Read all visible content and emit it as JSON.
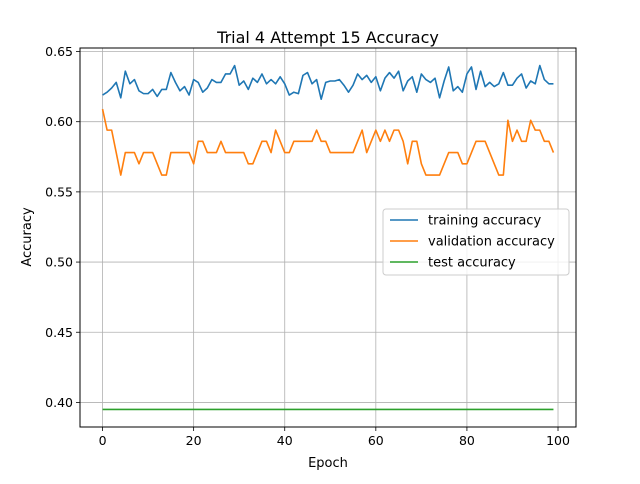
{
  "chart_data": {
    "type": "line",
    "title": "Trial 4 Attempt 15 Accuracy",
    "xlabel": "Epoch",
    "ylabel": "Accuracy",
    "xlim": [
      -4.95,
      103.95
    ],
    "ylim": [
      0.3825,
      0.6525
    ],
    "xticks": [
      0,
      20,
      40,
      60,
      80,
      100
    ],
    "yticks": [
      0.4,
      0.45,
      0.5,
      0.55,
      0.6,
      0.65
    ],
    "xtick_labels": [
      "0",
      "20",
      "40",
      "60",
      "80",
      "100"
    ],
    "ytick_labels": [
      "0.40",
      "0.45",
      "0.50",
      "0.55",
      "0.60",
      "0.65"
    ],
    "grid": true,
    "legend_position": "center-right",
    "series": [
      {
        "name": "training accuracy",
        "color": "#1f77b4",
        "values": [
          0.619,
          0.621,
          0.624,
          0.628,
          0.617,
          0.636,
          0.627,
          0.63,
          0.622,
          0.62,
          0.62,
          0.623,
          0.618,
          0.623,
          0.623,
          0.635,
          0.628,
          0.622,
          0.625,
          0.619,
          0.63,
          0.628,
          0.621,
          0.624,
          0.63,
          0.628,
          0.628,
          0.634,
          0.634,
          0.64,
          0.626,
          0.629,
          0.623,
          0.631,
          0.628,
          0.634,
          0.627,
          0.63,
          0.627,
          0.632,
          0.627,
          0.619,
          0.621,
          0.62,
          0.633,
          0.635,
          0.627,
          0.63,
          0.616,
          0.628,
          0.629,
          0.629,
          0.63,
          0.626,
          0.621,
          0.626,
          0.634,
          0.63,
          0.633,
          0.628,
          0.632,
          0.622,
          0.631,
          0.635,
          0.631,
          0.636,
          0.622,
          0.629,
          0.632,
          0.621,
          0.634,
          0.63,
          0.628,
          0.631,
          0.617,
          0.629,
          0.639,
          0.622,
          0.625,
          0.621,
          0.634,
          0.639,
          0.623,
          0.636,
          0.625,
          0.628,
          0.625,
          0.627,
          0.635,
          0.626,
          0.626,
          0.631,
          0.634,
          0.624,
          0.629,
          0.627,
          0.64,
          0.63,
          0.627,
          0.627
        ]
      },
      {
        "name": "validation accuracy",
        "color": "#ff7f0e",
        "values": [
          0.609,
          0.594,
          0.594,
          0.578,
          0.562,
          0.578,
          0.578,
          0.578,
          0.57,
          0.578,
          0.578,
          0.578,
          0.57,
          0.562,
          0.562,
          0.578,
          0.578,
          0.578,
          0.578,
          0.578,
          0.57,
          0.586,
          0.586,
          0.578,
          0.578,
          0.578,
          0.586,
          0.578,
          0.578,
          0.578,
          0.578,
          0.578,
          0.57,
          0.57,
          0.578,
          0.586,
          0.586,
          0.578,
          0.594,
          0.586,
          0.578,
          0.578,
          0.586,
          0.586,
          0.586,
          0.586,
          0.586,
          0.594,
          0.586,
          0.586,
          0.578,
          0.578,
          0.578,
          0.578,
          0.578,
          0.578,
          0.586,
          0.594,
          0.578,
          0.586,
          0.594,
          0.586,
          0.594,
          0.586,
          0.594,
          0.594,
          0.586,
          0.57,
          0.586,
          0.586,
          0.57,
          0.562,
          0.562,
          0.562,
          0.562,
          0.57,
          0.578,
          0.578,
          0.578,
          0.57,
          0.57,
          0.578,
          0.586,
          0.586,
          0.586,
          0.578,
          0.57,
          0.562,
          0.562,
          0.601,
          0.586,
          0.594,
          0.586,
          0.586,
          0.601,
          0.594,
          0.594,
          0.586,
          0.586,
          0.578
        ]
      },
      {
        "name": "test accuracy",
        "color": "#2ca02c",
        "values": [
          0.395,
          0.395,
          0.395,
          0.395,
          0.395,
          0.395,
          0.395,
          0.395,
          0.395,
          0.395,
          0.395,
          0.395,
          0.395,
          0.395,
          0.395,
          0.395,
          0.395,
          0.395,
          0.395,
          0.395,
          0.395,
          0.395,
          0.395,
          0.395,
          0.395,
          0.395,
          0.395,
          0.395,
          0.395,
          0.395,
          0.395,
          0.395,
          0.395,
          0.395,
          0.395,
          0.395,
          0.395,
          0.395,
          0.395,
          0.395,
          0.395,
          0.395,
          0.395,
          0.395,
          0.395,
          0.395,
          0.395,
          0.395,
          0.395,
          0.395,
          0.395,
          0.395,
          0.395,
          0.395,
          0.395,
          0.395,
          0.395,
          0.395,
          0.395,
          0.395,
          0.395,
          0.395,
          0.395,
          0.395,
          0.395,
          0.395,
          0.395,
          0.395,
          0.395,
          0.395,
          0.395,
          0.395,
          0.395,
          0.395,
          0.395,
          0.395,
          0.395,
          0.395,
          0.395,
          0.395,
          0.395,
          0.395,
          0.395,
          0.395,
          0.395,
          0.395,
          0.395,
          0.395,
          0.395,
          0.395,
          0.395,
          0.395,
          0.395,
          0.395,
          0.395,
          0.395,
          0.395,
          0.395,
          0.395,
          0.395
        ]
      }
    ]
  }
}
